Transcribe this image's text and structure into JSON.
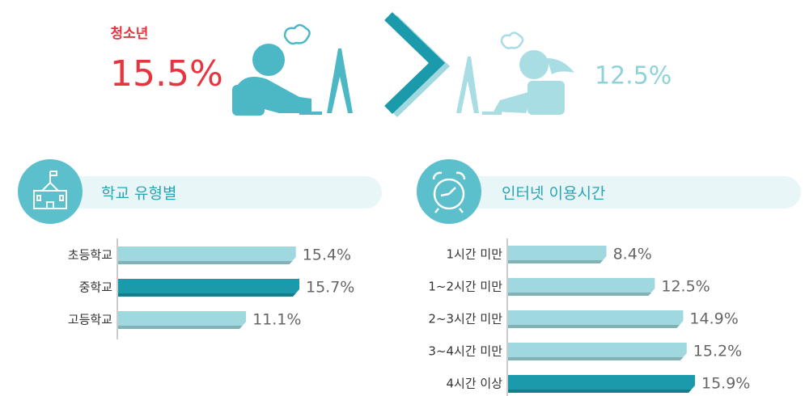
{
  "header": {
    "label": "청소년",
    "left_value": "15.5%",
    "right_value": "12.5%"
  },
  "chart_data": [
    {
      "type": "hbar",
      "title": "학교 유형별",
      "categories": [
        "초등학교",
        "중학교",
        "고등학교"
      ],
      "values": [
        15.4,
        15.7,
        11.1
      ],
      "value_labels": [
        "15.4%",
        "15.7%",
        "11.1%"
      ],
      "colors": [
        "#9fd8df",
        "#1a9aab",
        "#9fd8df"
      ]
    },
    {
      "type": "hbar",
      "title": "인터넷 이용시간",
      "categories": [
        "1시간 미만",
        "1~2시간 미만",
        "2~3시간 미만",
        "3~4시간 미만",
        "4시간 이상"
      ],
      "values": [
        8.4,
        12.5,
        14.9,
        15.2,
        15.9
      ],
      "value_labels": [
        "8.4%",
        "12.5%",
        "14.9%",
        "15.2%",
        "15.9%"
      ],
      "colors": [
        "#9fd8df",
        "#9fd8df",
        "#9fd8df",
        "#9fd8df",
        "#1a9aab"
      ]
    }
  ]
}
